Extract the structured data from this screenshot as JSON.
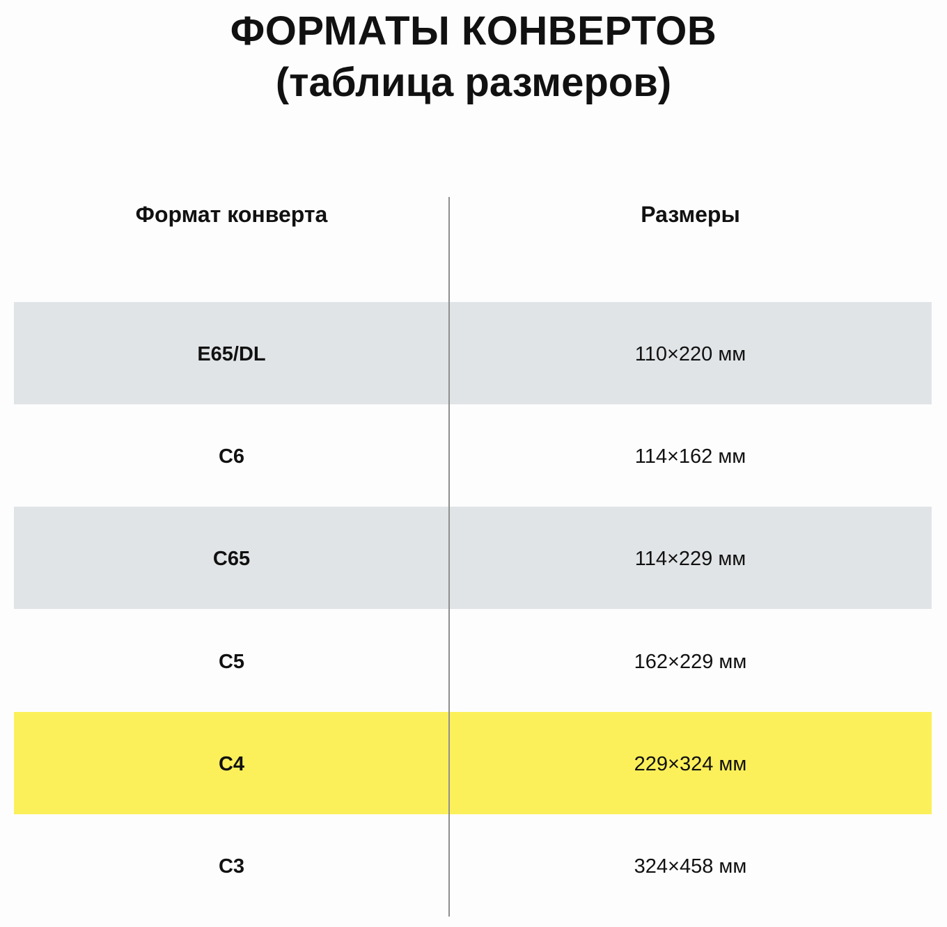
{
  "title_line1": "ФОРМАТЫ КОНВЕРТОВ",
  "title_line2": "(таблица размеров)",
  "headers": [
    "Формат конверта",
    "Размеры"
  ],
  "colors": {
    "stripe": "#e1e4e6",
    "highlight": "#fcf05a",
    "plain": "#fdfdfd"
  },
  "rows": [
    {
      "format": "E65/DL",
      "size": "110×220 мм",
      "style": "stripe"
    },
    {
      "format": "C6",
      "size": "114×162 мм",
      "style": "plain"
    },
    {
      "format": "C65",
      "size": "114×229 мм",
      "style": "stripe"
    },
    {
      "format": "C5",
      "size": "162×229 мм",
      "style": "plain"
    },
    {
      "format": "C4",
      "size": "229×324 мм",
      "style": "highlight"
    },
    {
      "format": "C3",
      "size": "324×458 мм",
      "style": "plain"
    }
  ]
}
